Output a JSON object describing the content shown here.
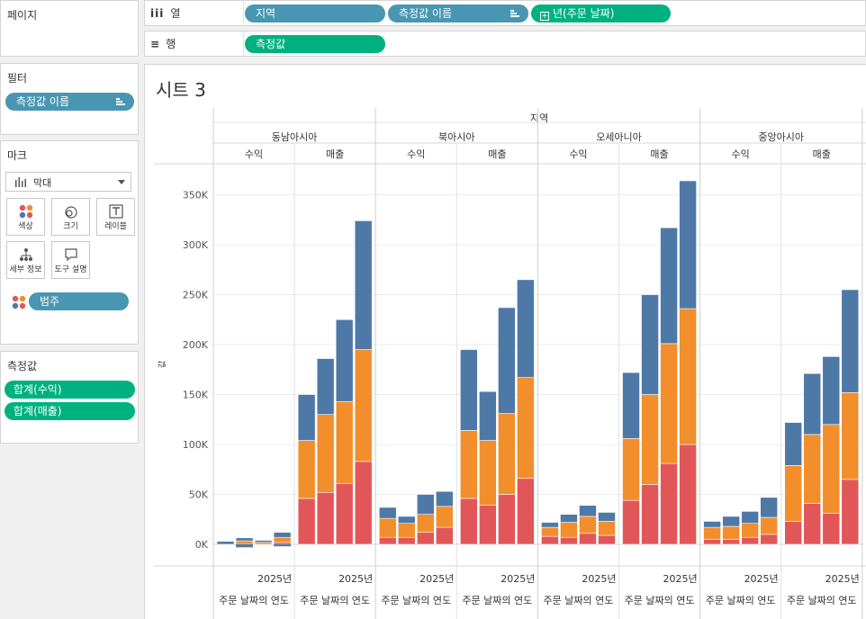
{
  "shelves": {
    "pages_label": "페이지",
    "columns_label": "열",
    "rows_label": "행",
    "columns_pills": [
      "지역",
      "측정값 이름",
      "년(주문 날짜)"
    ],
    "rows_pills": [
      "측정값"
    ]
  },
  "filters": {
    "title": "필터",
    "pills": [
      "측정값 이름"
    ]
  },
  "marks": {
    "title": "마크",
    "type": "막대",
    "buttons": [
      "색상",
      "크기",
      "레이블",
      "세부 정보",
      "도구 설명"
    ],
    "color_pill": "범주"
  },
  "measure_values": {
    "title": "측정값",
    "pills": [
      "합계(수익)",
      "합계(매출)"
    ]
  },
  "sheet": {
    "title": "시트 3",
    "icon_col_label": "iii",
    "icon_row_label": "≡"
  },
  "colors": {
    "blue": "#4e79a7",
    "orange": "#f28e2b",
    "red": "#e15759",
    "pill_blue": "#4996b2",
    "pill_green": "#00b180"
  },
  "chart_data": {
    "type": "bar",
    "stacked": true,
    "top_header": "지역",
    "regions": [
      "동남아시아",
      "북아시아",
      "오세아니아",
      "중앙아시아"
    ],
    "measures": [
      "수익",
      "매출"
    ],
    "x_tick_label": "2025년",
    "x_axis_label": "주문 날짜의 연도",
    "ylim": [
      -30000,
      380000
    ],
    "y_ticks": [
      0,
      50000,
      100000,
      150000,
      200000,
      250000,
      300000,
      350000
    ],
    "y_tick_labels": [
      "0K",
      "50K",
      "100K",
      "150K",
      "200K",
      "250K",
      "300K",
      "350K"
    ],
    "series_colors": [
      "#e15759",
      "#f28e2b",
      "#4e79a7"
    ],
    "groups": [
      {
        "region": "동남아시아",
        "measure": "수익",
        "bars": [
          [
            0,
            0,
            3000
          ],
          [
            0,
            3500,
            3000
          ],
          [
            0,
            2000,
            2000
          ],
          [
            2000,
            5000,
            5000
          ]
        ],
        "neg": [
          0,
          3000,
          0,
          2000
        ]
      },
      {
        "region": "동남아시아",
        "measure": "매출",
        "bars": [
          [
            46000,
            58000,
            46000
          ],
          [
            52000,
            78000,
            56000
          ],
          [
            61000,
            82000,
            82000
          ],
          [
            83000,
            112000,
            129000
          ]
        ],
        "neg": [
          0,
          0,
          0,
          0
        ]
      },
      {
        "region": "북아시아",
        "measure": "수익",
        "bars": [
          [
            7000,
            19000,
            11000
          ],
          [
            7000,
            14000,
            7000
          ],
          [
            12000,
            18000,
            20000
          ],
          [
            17000,
            21000,
            15000
          ]
        ],
        "neg": [
          0,
          0,
          0,
          0
        ]
      },
      {
        "region": "북아시아",
        "measure": "매출",
        "bars": [
          [
            46000,
            68000,
            81000
          ],
          [
            39000,
            65000,
            49000
          ],
          [
            50000,
            81000,
            106000
          ],
          [
            66000,
            101000,
            98000
          ]
        ],
        "neg": [
          0,
          0,
          0,
          0
        ]
      },
      {
        "region": "오세아니아",
        "measure": "수익",
        "bars": [
          [
            8000,
            9000,
            5000
          ],
          [
            7000,
            15000,
            8000
          ],
          [
            11000,
            17000,
            11000
          ],
          [
            9000,
            14000,
            9000
          ]
        ],
        "neg": [
          0,
          0,
          0,
          0
        ]
      },
      {
        "region": "오세아니아",
        "measure": "매출",
        "bars": [
          [
            44000,
            62000,
            66000
          ],
          [
            60000,
            90000,
            100000
          ],
          [
            81000,
            120000,
            116000
          ],
          [
            100000,
            136000,
            128000
          ]
        ],
        "neg": [
          0,
          0,
          0,
          0
        ]
      },
      {
        "region": "중앙아시아",
        "measure": "수익",
        "bars": [
          [
            5000,
            12000,
            6000
          ],
          [
            5000,
            13000,
            10000
          ],
          [
            7000,
            14000,
            12000
          ],
          [
            10000,
            17000,
            20000
          ]
        ],
        "neg": [
          0,
          0,
          0,
          0
        ]
      },
      {
        "region": "중앙아시아",
        "measure": "매출",
        "bars": [
          [
            23000,
            56000,
            43000
          ],
          [
            41000,
            69000,
            61000
          ],
          [
            31000,
            89000,
            68000
          ],
          [
            65000,
            87000,
            103000
          ]
        ],
        "neg": [
          0,
          0,
          0,
          0
        ]
      }
    ]
  }
}
